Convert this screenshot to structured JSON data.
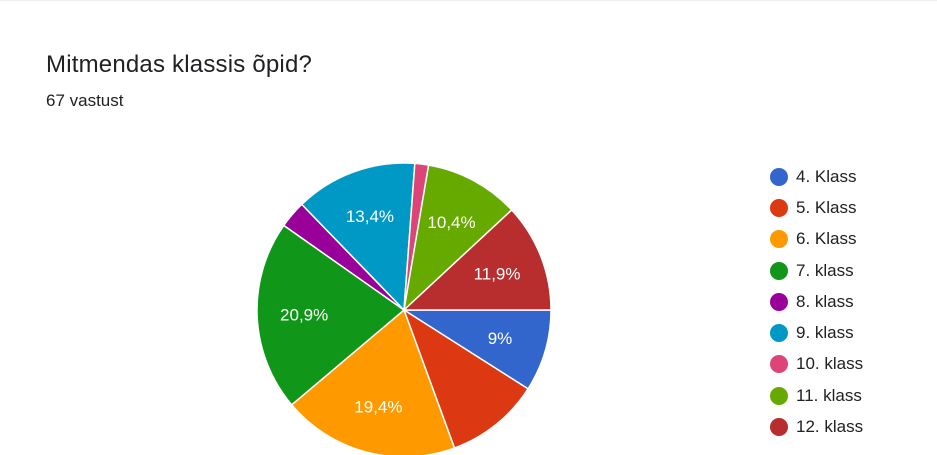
{
  "question": {
    "title": "Mitmendas klassis õpid?",
    "response_count": "67 vastust"
  },
  "chart_data": {
    "type": "pie",
    "title": "Mitmendas klassis õpid?",
    "categories": [
      "4. Klass",
      "5. Klass",
      "6. Klass",
      "7. klass",
      "8. klass",
      "9. klass",
      "10. klass",
      "11. klass",
      "12. klass"
    ],
    "values": [
      9,
      10.4,
      19.4,
      20.9,
      3,
      13.4,
      1.5,
      10.4,
      11.9
    ],
    "labels": [
      "9%",
      "",
      "19,4%",
      "20,9%",
      "",
      "13,4%",
      "",
      "10,4%",
      "11,9%"
    ],
    "colors": [
      "#3366cc",
      "#dc3912",
      "#ff9900",
      "#109618",
      "#990099",
      "#0099c6",
      "#dd4477",
      "#66aa00",
      "#b82e2e"
    ],
    "legend_position": "right",
    "start": "right, clockwise"
  }
}
